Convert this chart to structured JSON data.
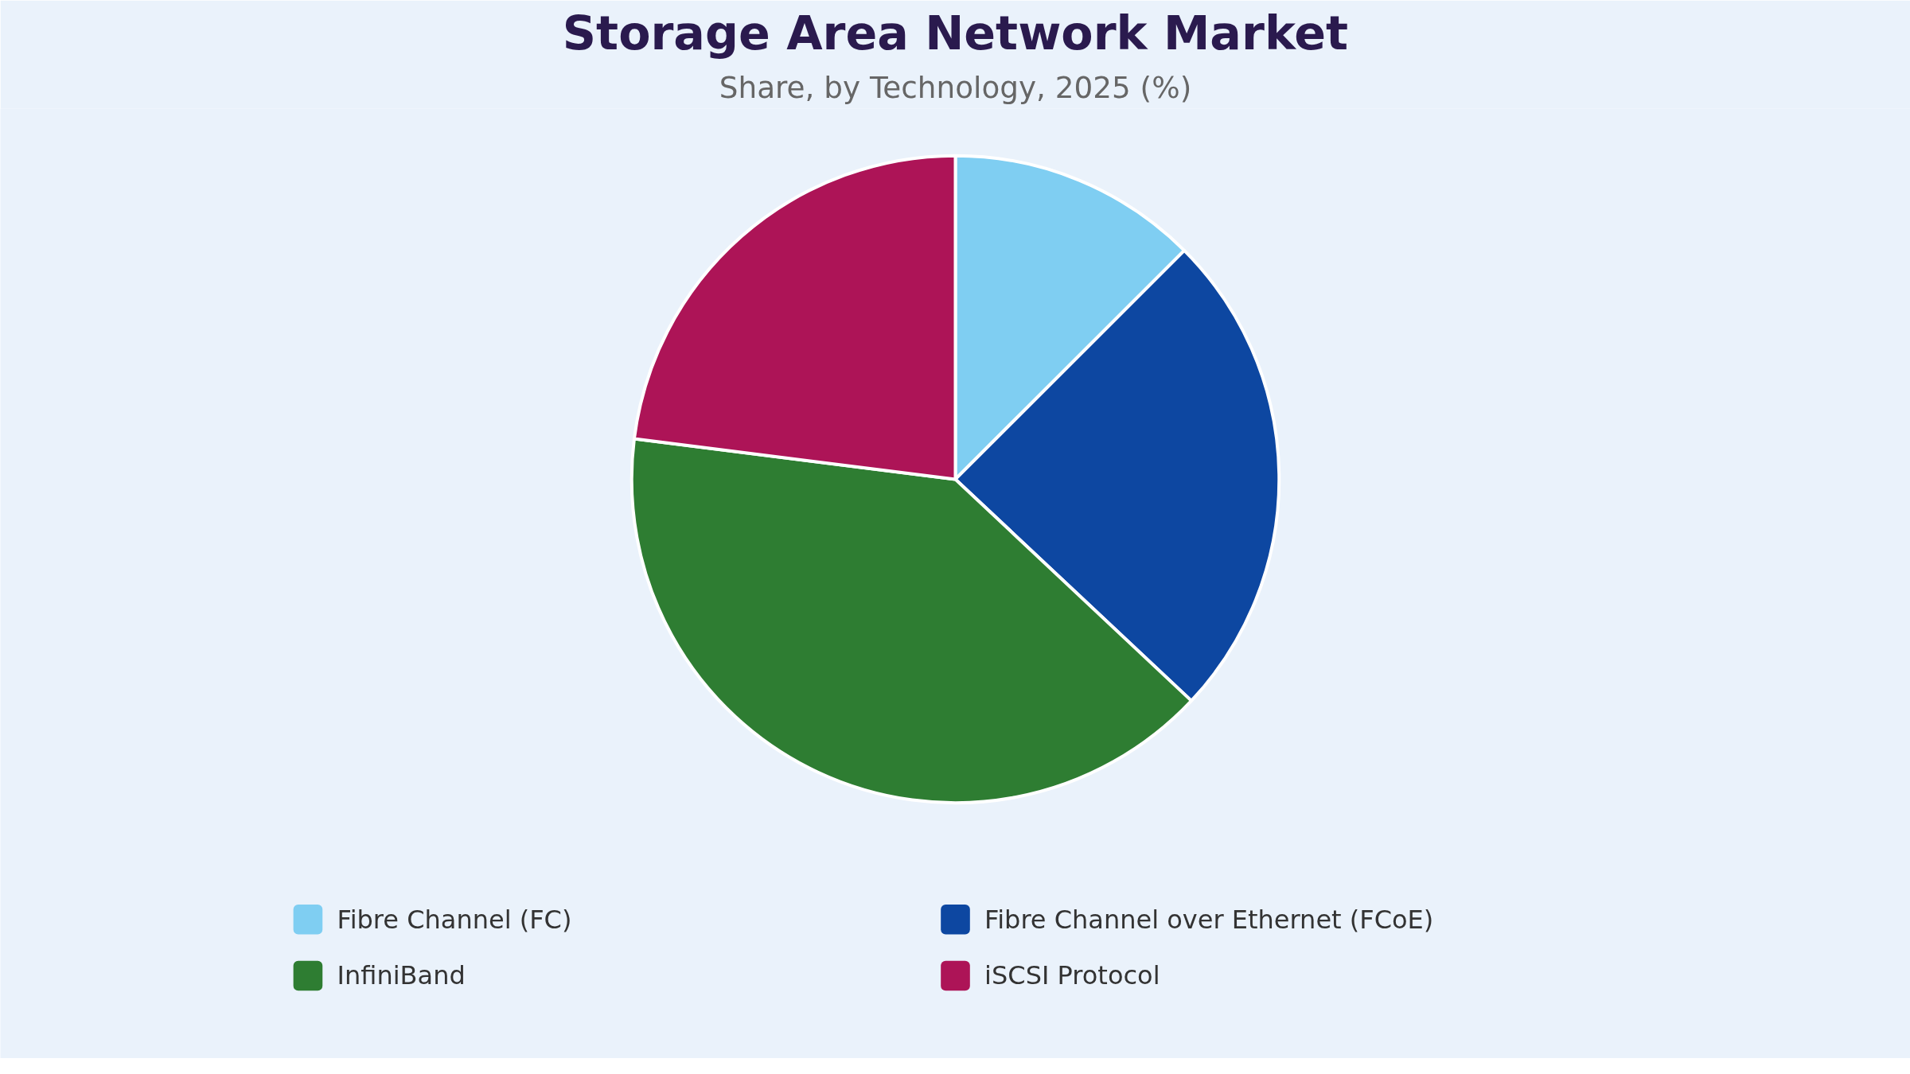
{
  "chart_data": {
    "type": "pie",
    "title": "Storage Area Network Market",
    "subtitle": "Share, by Technology, 2025 (%)",
    "categories": [
      "Fibre Channel (FC)",
      "Fibre Channel over Ethernet (FCoE)",
      "InfiniBand",
      "iSCSI Protocol"
    ],
    "values": [
      12.5,
      24.5,
      40,
      23
    ],
    "colors": [
      "#7fcef2",
      "#0d47a1",
      "#2e7d32",
      "#ad1457"
    ],
    "legend": "bottom"
  }
}
